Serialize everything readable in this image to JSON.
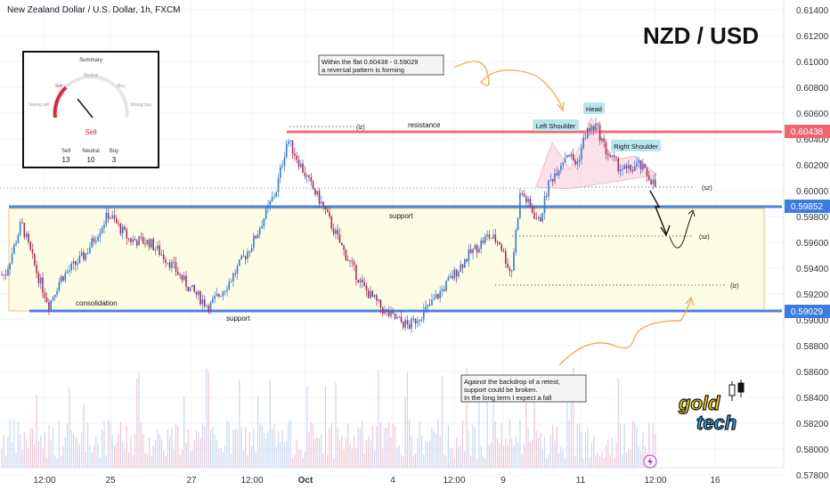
{
  "header": {
    "symbol_title": "New Zealand Dollar / U.S. Dollar, 1h, FXCM",
    "pair_big": "NZD / USD"
  },
  "price_axis": {
    "ticks": [
      "0.61400",
      "0.61200",
      "0.61000",
      "0.60800",
      "0.60600",
      "0.60400",
      "0.60200",
      "0.60000",
      "0.59800",
      "0.59600",
      "0.59400",
      "0.59200",
      "0.59000",
      "0.58800",
      "0.58600",
      "0.58400",
      "0.58200",
      "0.58000",
      "0.57800"
    ],
    "badges": [
      {
        "value": "0.60438",
        "color": "#f06570"
      },
      {
        "value": "0.59852",
        "color": "#3d7be0"
      },
      {
        "value": "0.59029",
        "color": "#3d7be0"
      }
    ]
  },
  "time_axis": {
    "ticks": [
      "12:00",
      "25",
      "27",
      "12:00",
      "Oct",
      "4",
      "12:00",
      "9",
      "11",
      "12:00",
      "16"
    ]
  },
  "summary_widget": {
    "title": "Summary",
    "gauge_labels": {
      "strong_sell": "Strong sell",
      "sell": "Sell",
      "neutral": "Neutral",
      "buy": "Buy",
      "strong_buy": "Strong buy"
    },
    "verdict": "Sell",
    "counts": [
      {
        "label": "Sell",
        "value": "13"
      },
      {
        "label": "Neutral",
        "value": "10"
      },
      {
        "label": "Buy",
        "value": "3"
      }
    ]
  },
  "annotations": {
    "flat_note_line1": "Within the flat 0.60438 - 0.59029",
    "flat_note_line2": "a reversal pattern is forming",
    "retest_note_line1": "Against the backdrop of a retest,",
    "retest_note_line2": "support could be broken.",
    "retest_note_line3": "In the long term I expect a fall",
    "resistance": "resistance",
    "support_mid": "support",
    "support_low": "support",
    "consolidation": "consolidation",
    "lz_top": "(lz)",
    "lz_bottom": "(lz)",
    "sz_top": "(sz)",
    "sz_bottom": "(sz)",
    "left_shoulder": "Left Shoulder",
    "head": "Head",
    "right_shoulder": "Right Shoulder"
  },
  "logo": {
    "line1": "gold",
    "line2": "tech"
  },
  "colors": {
    "bull": "#2f7bd8",
    "bear": "#b02a55",
    "resistance": "#f26b73",
    "support": "#4a82e2",
    "zone_fill": "#fdfde6",
    "zone_border": "#f3c47a",
    "label_bg": "#b9e6ec",
    "accent": "#f3a53a"
  },
  "chart_data": {
    "type": "candlestick",
    "x_range": [
      "Sep 22",
      "Oct 16"
    ],
    "y_range": [
      0.578,
      0.615
    ],
    "levels": {
      "resistance": 0.60438,
      "support": 0.59852,
      "lower_support": 0.59029
    },
    "zones": [
      {
        "name": "consolidation",
        "from": 0.59029,
        "to": 0.59852
      }
    ],
    "pattern": "head and shoulders",
    "close_path": [
      {
        "x": "Sep 22 00:00",
        "y": 0.5935
      },
      {
        "x": "Sep 22 12:00",
        "y": 0.5975
      },
      {
        "x": "Sep 23 00:00",
        "y": 0.5935
      },
      {
        "x": "Sep 23 12:00",
        "y": 0.5912
      },
      {
        "x": "Sep 24 00:00",
        "y": 0.5932
      },
      {
        "x": "Sep 24 12:00",
        "y": 0.595
      },
      {
        "x": "Sep 25 00:00",
        "y": 0.5982
      },
      {
        "x": "Sep 25 12:00",
        "y": 0.5962
      },
      {
        "x": "Sep 26 00:00",
        "y": 0.596
      },
      {
        "x": "Sep 26 12:00",
        "y": 0.5945
      },
      {
        "x": "Sep 27 00:00",
        "y": 0.5925
      },
      {
        "x": "Sep 27 12:00",
        "y": 0.591
      },
      {
        "x": "Sep 28 00:00",
        "y": 0.593
      },
      {
        "x": "Sep 28 12:00",
        "y": 0.596
      },
      {
        "x": "Sep 29 00:00",
        "y": 0.6
      },
      {
        "x": "Sep 29 06:00",
        "y": 0.604
      },
      {
        "x": "Sep 29 18:00",
        "y": 0.6005
      },
      {
        "x": "Oct 2 00:00",
        "y": 0.599
      },
      {
        "x": "Oct 2 12:00",
        "y": 0.5955
      },
      {
        "x": "Oct 3 00:00",
        "y": 0.5925
      },
      {
        "x": "Oct 3 12:00",
        "y": 0.5905
      },
      {
        "x": "Oct 4 00:00",
        "y": 0.5895
      },
      {
        "x": "Oct 4 12:00",
        "y": 0.591
      },
      {
        "x": "Oct 5 00:00",
        "y": 0.593
      },
      {
        "x": "Oct 5 12:00",
        "y": 0.595
      },
      {
        "x": "Oct 6 00:00",
        "y": 0.5965
      },
      {
        "x": "Oct 6 12:00",
        "y": 0.596
      },
      {
        "x": "Oct 9 00:00",
        "y": 0.5935
      },
      {
        "x": "Oct 9 06:00",
        "y": 0.6
      },
      {
        "x": "Oct 9 18:00",
        "y": 0.5975
      },
      {
        "x": "Oct 10 00:00",
        "y": 0.6005
      },
      {
        "x": "Oct 10 12:00",
        "y": 0.603
      },
      {
        "x": "Oct 10 18:00",
        "y": 0.602
      },
      {
        "x": "Oct 11 00:00",
        "y": 0.6045
      },
      {
        "x": "Oct 11 06:00",
        "y": 0.605
      },
      {
        "x": "Oct 11 12:00",
        "y": 0.603
      },
      {
        "x": "Oct 11 18:00",
        "y": 0.602
      },
      {
        "x": "Oct 12 00:00",
        "y": 0.6015
      },
      {
        "x": "Oct 12 06:00",
        "y": 0.602
      },
      {
        "x": "Oct 12 12:00",
        "y": 0.601
      },
      {
        "x": "Oct 12 18:00",
        "y": 0.5995
      }
    ]
  }
}
